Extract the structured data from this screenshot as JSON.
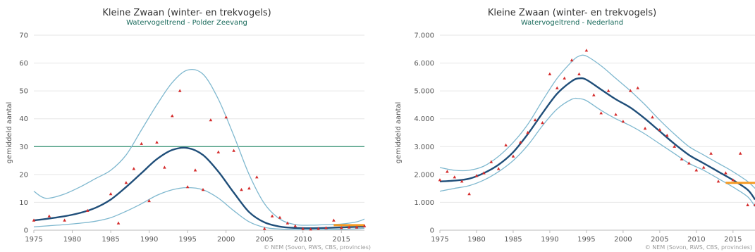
{
  "colors": {
    "trend": "#1f4e79",
    "band": "#7fb8cf",
    "observed": "#d42a2a",
    "reference": "#2f8f6f",
    "recent": "#f59a23",
    "grid": "#e6e6e6"
  },
  "chart_data": [
    {
      "type": "line",
      "title": "Kleine Zwaan (winter- en trekvogels)",
      "subtitle": "Watervogeltrend - Polder Zeevang",
      "ylabel": "gemiddeld aantal",
      "xlabel": "",
      "credit": "© NEM (Sovon, RWS, CBS, provincies)",
      "xlim": [
        1975,
        2018
      ],
      "ylim": [
        0,
        70
      ],
      "yticks": [
        0,
        10,
        20,
        30,
        40,
        50,
        60,
        70
      ],
      "ytick_labels": [
        "0",
        "10",
        "20",
        "30",
        "40",
        "50",
        "60",
        "70"
      ],
      "xticks": [
        1975,
        1980,
        1985,
        1990,
        1995,
        2000,
        2005,
        2010,
        2015
      ],
      "grid": true,
      "reference_line": 30,
      "trend": {
        "x": [
          1975,
          1977,
          1979,
          1981,
          1983,
          1985,
          1987,
          1989,
          1991,
          1993,
          1995,
          1997,
          1999,
          2001,
          2003,
          2005,
          2007,
          2009,
          2011,
          2013,
          2015,
          2017,
          2018
        ],
        "y": [
          3.5,
          4.2,
          5.0,
          6.2,
          8.0,
          11.0,
          15.5,
          20.5,
          25.5,
          28.8,
          29.5,
          27.0,
          21.0,
          13.5,
          6.5,
          2.8,
          1.3,
          0.8,
          0.7,
          0.8,
          1.0,
          1.2,
          1.3
        ]
      },
      "upper": {
        "x": [
          1975,
          1976,
          1977,
          1979,
          1981,
          1983,
          1985,
          1987,
          1989,
          1991,
          1993,
          1995,
          1997,
          1999,
          2001,
          2003,
          2005,
          2007,
          2009,
          2011,
          2013,
          2015,
          2017,
          2018
        ],
        "y": [
          14.0,
          12.0,
          11.5,
          13.0,
          15.5,
          18.5,
          21.5,
          27.0,
          36.0,
          45.0,
          53.0,
          57.5,
          56.0,
          47.0,
          34.0,
          20.0,
          9.5,
          4.0,
          2.0,
          1.8,
          2.0,
          2.2,
          3.0,
          4.0
        ]
      },
      "lower": {
        "x": [
          1975,
          1977,
          1979,
          1981,
          1983,
          1985,
          1987,
          1989,
          1991,
          1993,
          1995,
          1997,
          1999,
          2001,
          2003,
          2005,
          2007,
          2009,
          2011,
          2013,
          2015,
          2017,
          2018
        ],
        "y": [
          1.2,
          1.6,
          2.0,
          2.5,
          3.2,
          4.5,
          6.8,
          9.5,
          12.5,
          14.5,
          15.3,
          14.5,
          11.5,
          7.0,
          3.0,
          1.0,
          0.4,
          0.2,
          0.2,
          0.2,
          0.3,
          0.5,
          0.7
        ]
      },
      "observed": {
        "x": [
          1975,
          1977,
          1979,
          1982,
          1985,
          1986,
          1987,
          1988,
          1989,
          1990,
          1991,
          1992,
          1993,
          1994,
          1995,
          1996,
          1997,
          1998,
          1999,
          2000,
          2001,
          2002,
          2003,
          2004,
          2005,
          2006,
          2007,
          2008,
          2009,
          2010,
          2011,
          2012,
          2013,
          2014,
          2015,
          2016,
          2017,
          2018
        ],
        "y": [
          3.5,
          5.0,
          3.5,
          7.0,
          13.0,
          2.5,
          17.0,
          22.0,
          31.0,
          10.5,
          31.5,
          22.5,
          41.0,
          50.0,
          15.5,
          21.5,
          14.5,
          39.5,
          28.0,
          40.5,
          28.5,
          14.5,
          15.0,
          19.0,
          0.5,
          5.0,
          4.5,
          2.5,
          1.5,
          0.5,
          0.3,
          0.5,
          0.8,
          3.5,
          0.8,
          1.0,
          1.0,
          1.5
        ]
      },
      "recent_level": {
        "x": [
          2014,
          2018
        ],
        "y": [
          1.8,
          1.8
        ]
      }
    },
    {
      "type": "line",
      "title": "Kleine Zwaan (winter- en trekvogels)",
      "subtitle": "Watervogeltrend - Nederland",
      "ylabel": "gemiddeld aantal",
      "xlabel": "",
      "credit": "© NEM (Sovon, RWS, CBS, provincies)",
      "xlim": [
        1975,
        2018
      ],
      "ylim": [
        0,
        7000
      ],
      "yticks": [
        0,
        1000,
        2000,
        3000,
        4000,
        5000,
        6000,
        7000
      ],
      "ytick_labels": [
        "0",
        "1.000",
        "2.000",
        "3.000",
        "4.000",
        "5.000",
        "6.000",
        "7.000"
      ],
      "xticks": [
        1975,
        1980,
        1985,
        1990,
        1995,
        2000,
        2005,
        2010,
        2015
      ],
      "grid": true,
      "trend": {
        "x": [
          1975,
          1977,
          1979,
          1981,
          1983,
          1985,
          1987,
          1989,
          1991,
          1993,
          1994,
          1995,
          1997,
          1999,
          2001,
          2003,
          2005,
          2007,
          2009,
          2011,
          2013,
          2015,
          2017,
          2018
        ],
        "y": [
          1750,
          1780,
          1850,
          2050,
          2350,
          2800,
          3450,
          4200,
          4900,
          5350,
          5450,
          5400,
          5050,
          4700,
          4400,
          4000,
          3550,
          3100,
          2700,
          2400,
          2100,
          1800,
          1450,
          1100
        ]
      },
      "upper": {
        "x": [
          1975,
          1977,
          1979,
          1981,
          1983,
          1985,
          1987,
          1989,
          1991,
          1993,
          1994,
          1995,
          1997,
          1999,
          2001,
          2003,
          2005,
          2007,
          2009,
          2011,
          2013,
          2015,
          2017,
          2018
        ],
        "y": [
          2250,
          2150,
          2150,
          2300,
          2650,
          3150,
          3800,
          4650,
          5450,
          6050,
          6250,
          6250,
          5900,
          5450,
          5000,
          4500,
          3950,
          3450,
          3000,
          2700,
          2400,
          2100,
          1750,
          1500
        ]
      },
      "lower": {
        "x": [
          1975,
          1977,
          1979,
          1981,
          1983,
          1985,
          1987,
          1989,
          1991,
          1993,
          1994,
          1995,
          1997,
          1999,
          2001,
          2003,
          2005,
          2007,
          2009,
          2011,
          2013,
          2015,
          2017,
          2018
        ],
        "y": [
          1400,
          1500,
          1600,
          1800,
          2100,
          2500,
          3050,
          3750,
          4350,
          4700,
          4720,
          4650,
          4300,
          4000,
          3750,
          3450,
          3100,
          2750,
          2400,
          2150,
          1850,
          1550,
          1200,
          850
        ]
      },
      "observed": {
        "x": [
          1975,
          1976,
          1977,
          1978,
          1979,
          1980,
          1981,
          1982,
          1983,
          1984,
          1985,
          1986,
          1987,
          1988,
          1989,
          1990,
          1991,
          1992,
          1993,
          1994,
          1995,
          1996,
          1997,
          1998,
          1999,
          2000,
          2001,
          2002,
          2003,
          2004,
          2005,
          2006,
          2007,
          2008,
          2009,
          2010,
          2011,
          2012,
          2013,
          2014,
          2015,
          2016,
          2017,
          2018
        ],
        "y": [
          1800,
          2100,
          1900,
          1750,
          1300,
          1950,
          2050,
          2450,
          2200,
          3050,
          2650,
          3150,
          3500,
          3950,
          3850,
          5600,
          5100,
          5450,
          6100,
          5600,
          6450,
          4850,
          4200,
          5000,
          4150,
          3900,
          5000,
          5100,
          3650,
          4050,
          3600,
          3400,
          3000,
          2550,
          2400,
          2150,
          2250,
          2750,
          1750,
          2050,
          1800,
          2750,
          900,
          900
        ]
      },
      "recent_level": {
        "x": [
          2014,
          2018
        ],
        "y": [
          1700,
          1700
        ]
      }
    }
  ]
}
